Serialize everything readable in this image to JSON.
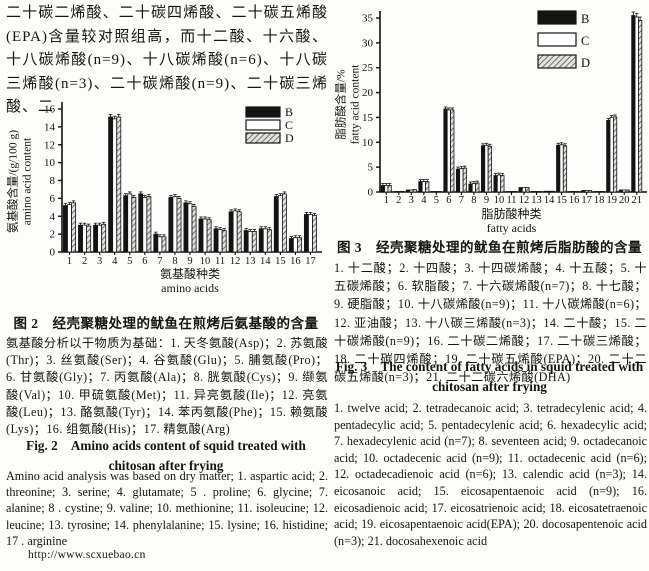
{
  "page": {
    "intro_text": "二十碳二烯酸、二十碳四烯酸、二十碳五烯酸(EPA)含量较对照组高，而十二酸、十六酸、十八碳烯酸(n=9)、十八碳烯酸(n=6)、十八碳三烯酸(n=3)、二十碳烯酸(n=9)、二十碳三烯酸、二",
    "footer_url": "http://www.scxuebao.cn"
  },
  "figure2": {
    "caption_zh": "图 2　经壳聚糖处理的鱿鱼在煎烤后氨基酸的含量",
    "note_zh": "氨基酸分析以干物质为基础：1. 天冬氨酸(Asp)；2. 苏氨酸(Thr)；3. 丝氨酸(Ser)；4. 谷氨酸(Glu)；5. 脯氨酸(Pro)；6. 甘氨酸(Gly)；7. 丙氨酸(Ala)；8. 胱氨酸(Cys)；9. 缬氨酸(Val)；10. 甲硫氨酸(Met)；11. 异亮氨酸(Ile)；12. 亮氨酸(Leu)；13. 酪氨酸(Tyr)；14. 苯丙氨酸(Phe)；15. 赖氨酸(Lys)；16. 组氨酸(His)；17. 精氨酸(Arg)",
    "caption_en_l1": "Fig. 2　Amino acids content of squid treated with",
    "caption_en_l2": "chitosan after frying",
    "note_en": "Amino acid analysis was based on dry matter; 1. aspartic acid; 2. threonine; 3. serine; 4. glutamate; 5 . proline; 6. glycine; 7. alanine; 8 . cystine; 9. valine; 10. methionine; 11. isoleucine; 12. leucine; 13. tyrosine; 14. phenylalanine; 15. lysine; 16. histidine; 17 . arginine"
  },
  "figure3": {
    "caption_zh": "图 3　经壳聚糖处理的鱿鱼在煎烤后脂肪酸的含量",
    "note_zh": "1. 十二酸；2. 十四酸；3. 十四碳烯酸；4. 十五酸；5. 十五碳烯酸；6. 软脂酸；7. 十六碳烯酸(n=7)；8. 十七酸；9. 硬脂酸；10. 十八碳烯酸(n=9)；11. 十八碳烯酸(n=6)；12. 亚油酸；13. 十八碳三烯酸(n=3)；14. 二十酸；15. 二十碳烯酸(n=9)；16. 二十碳二烯酸；17. 二十碳三烯酸；18. 二十碳四烯酸；19. 二十碳五烯酸(EPA)；20. 二十二碳五烯酸(n=3)；21. 二十二碳六烯酸(DHA)",
    "caption_en_l1": "Fig. 3　The content of fatty acids in squid treated with",
    "caption_en_l2": "chitosan after frying",
    "note_en": "1. twelve acid; 2. tetradecanoic acid; 3. tetradecylenic acid; 4. pentadecylic acid; 5. pentadecylenic acid; 6. hexadecylic acid; 7. hexadecylenic acid (n=7); 8. seventeen acid; 9. octadecanoic acid; 10. octadecenic acid (n=9); 11. octadecenic acid (n=6); 12. octadecadienoic acid (n=6); 13. calendic acid (n=3); 14. eicosanoic acid; 15. eicosapentaenoic acid (n=9); 16. eicosadienoic acid; 17. eicosatrienoic acid; 18. eicosatetraenoic acid; 19. eicosapentaenoic acid(EPA); 20. docosapentenoic acid (n=3); 21. docosahexenoic acid"
  },
  "chart_data": [
    {
      "type": "bar",
      "title": "Amino acids content of squid treated with chitosan after frying",
      "categories": [
        "1",
        "2",
        "3",
        "4",
        "5",
        "6",
        "7",
        "8",
        "9",
        "10",
        "11",
        "12",
        "13",
        "14",
        "15",
        "16",
        "17"
      ],
      "series": [
        {
          "name": "B",
          "fill": "#111111",
          "values": [
            5.2,
            3.0,
            3.0,
            15.1,
            6.3,
            6.5,
            2.0,
            6.1,
            5.5,
            3.7,
            2.6,
            4.5,
            2.4,
            2.6,
            6.2,
            1.5,
            4.2
          ]
        },
        {
          "name": "C",
          "fill": "#ffffff",
          "values": [
            5.3,
            3.0,
            3.0,
            14.9,
            6.5,
            6.1,
            1.7,
            6.2,
            5.4,
            3.7,
            2.5,
            4.6,
            2.3,
            2.6,
            6.3,
            1.6,
            4.2
          ]
        },
        {
          "name": "D",
          "fill": "hatch",
          "values": [
            5.5,
            2.9,
            3.1,
            15.1,
            6.1,
            6.2,
            1.7,
            6.0,
            5.1,
            3.6,
            2.4,
            4.5,
            2.3,
            2.5,
            6.5,
            1.6,
            4.1
          ]
        }
      ],
      "ylabel_zh": "氨基酸含量/(g/100 g)",
      "ylabel_en": "amino acid content",
      "xlabel_zh": "氨基酸种类",
      "xlabel_en": "amino acids",
      "ylim": [
        0,
        16
      ],
      "yticks": [
        0,
        2,
        4,
        6,
        8,
        10,
        12,
        14,
        16
      ],
      "legend_position": "top-right",
      "error_bars": true,
      "grid": false
    },
    {
      "type": "bar",
      "title": "The content of fatty acids in squid treated with chitosan after frying",
      "categories": [
        "1",
        "2",
        "3",
        "4",
        "5",
        "6",
        "7",
        "8",
        "9",
        "10",
        "11",
        "12",
        "13",
        "14",
        "15",
        "16",
        "17",
        "18",
        "19",
        "20",
        "21"
      ],
      "series": [
        {
          "name": "B",
          "fill": "#111111",
          "values": [
            1.3,
            0.1,
            0.4,
            2.1,
            0.1,
            16.7,
            4.6,
            1.6,
            9.3,
            3.3,
            0.1,
            0.9,
            0.1,
            0.15,
            9.4,
            0.1,
            0.3,
            0.1,
            14.4,
            0.4,
            35.5
          ]
        },
        {
          "name": "C",
          "fill": "#ffffff",
          "values": [
            1.3,
            0.1,
            0.4,
            2.1,
            0.1,
            16.5,
            4.7,
            1.7,
            9.4,
            3.4,
            0.1,
            0.9,
            0.1,
            0.15,
            9.5,
            0.1,
            0.3,
            0.1,
            15.0,
            0.4,
            35.2
          ]
        },
        {
          "name": "D",
          "fill": "hatch",
          "values": [
            1.3,
            0.1,
            0.5,
            2.1,
            0.1,
            16.5,
            4.8,
            1.8,
            9.2,
            3.3,
            0.1,
            0.9,
            0.1,
            0.15,
            9.3,
            0.1,
            0.3,
            0.1,
            15.1,
            0.4,
            34.5
          ]
        }
      ],
      "ylabel_zh": "脂肪酸含量/%",
      "ylabel_en": "fatty acid content",
      "xlabel_zh": "脂肪酸种类",
      "xlabel_en": "fatty acids",
      "ylim": [
        0,
        35
      ],
      "yticks": [
        0,
        5,
        10,
        15,
        20,
        25,
        30,
        35
      ],
      "legend_position": "top-right",
      "error_bars": true,
      "grid": false
    }
  ]
}
